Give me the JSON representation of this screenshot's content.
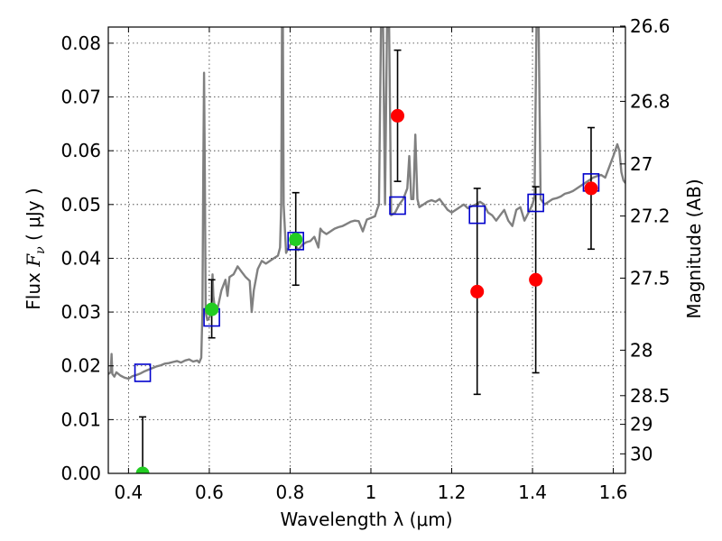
{
  "chart_data": {
    "type": "scatter",
    "title": "",
    "xlabel": "Wavelength  λ (μm)",
    "ylabel_parts": {
      "pre": "Flux  ",
      "sym": "F",
      "sub": "ν",
      "post": "  ( μJy )"
    },
    "ylabel_right": "Magnitude (AB)",
    "xlim": [
      0.35,
      1.63
    ],
    "ylim": [
      0.0,
      0.083
    ],
    "grid": true,
    "x_ticks": [
      0.4,
      0.6,
      0.8,
      1.0,
      1.2,
      1.4,
      1.6
    ],
    "x_tick_labels": [
      "0.4",
      "0.6",
      "0.8",
      "1",
      "1.2",
      "1.4",
      "1.6"
    ],
    "y_ticks": [
      0.0,
      0.01,
      0.02,
      0.03,
      0.04,
      0.05,
      0.06,
      0.07,
      0.08
    ],
    "y_tick_labels": [
      "0.00",
      "0.01",
      "0.02",
      "0.03",
      "0.04",
      "0.05",
      "0.06",
      "0.07",
      "0.08"
    ],
    "mag_ticks": [
      {
        "mag": 26.6,
        "label": "26.6"
      },
      {
        "mag": 26.8,
        "label": "26.8"
      },
      {
        "mag": 27.0,
        "label": "27"
      },
      {
        "mag": 27.2,
        "label": "27.2"
      },
      {
        "mag": 27.5,
        "label": "27.5"
      },
      {
        "mag": 28.0,
        "label": "28"
      },
      {
        "mag": 28.5,
        "label": "28.5"
      },
      {
        "mag": 29.0,
        "label": "29"
      },
      {
        "mag": 30.0,
        "label": "30"
      }
    ],
    "series": [
      {
        "kind": "template_spectrum",
        "color": "#808080",
        "points": [
          [
            0.35,
            0.0185
          ],
          [
            0.356,
            0.0188
          ],
          [
            0.358,
            0.0222
          ],
          [
            0.36,
            0.0185
          ],
          [
            0.365,
            0.018
          ],
          [
            0.37,
            0.0188
          ],
          [
            0.38,
            0.0182
          ],
          [
            0.39,
            0.0178
          ],
          [
            0.4,
            0.0176
          ],
          [
            0.41,
            0.0181
          ],
          [
            0.42,
            0.0183
          ],
          [
            0.43,
            0.0186
          ],
          [
            0.44,
            0.019
          ],
          [
            0.45,
            0.0193
          ],
          [
            0.46,
            0.0196
          ],
          [
            0.47,
            0.0199
          ],
          [
            0.48,
            0.0201
          ],
          [
            0.49,
            0.0204
          ],
          [
            0.5,
            0.0205
          ],
          [
            0.51,
            0.0207
          ],
          [
            0.52,
            0.0209
          ],
          [
            0.53,
            0.0206
          ],
          [
            0.54,
            0.021
          ],
          [
            0.55,
            0.0212
          ],
          [
            0.56,
            0.0208
          ],
          [
            0.57,
            0.021
          ],
          [
            0.575,
            0.0206
          ],
          [
            0.58,
            0.0215
          ],
          [
            0.583,
            0.03
          ],
          [
            0.585,
            0.055
          ],
          [
            0.587,
            0.0745
          ],
          [
            0.589,
            0.055
          ],
          [
            0.591,
            0.03
          ],
          [
            0.595,
            0.0285
          ],
          [
            0.6,
            0.029
          ],
          [
            0.605,
            0.03
          ],
          [
            0.608,
            0.037
          ],
          [
            0.61,
            0.033
          ],
          [
            0.615,
            0.03
          ],
          [
            0.62,
            0.0305
          ],
          [
            0.63,
            0.034
          ],
          [
            0.64,
            0.036
          ],
          [
            0.645,
            0.033
          ],
          [
            0.65,
            0.0365
          ],
          [
            0.66,
            0.037
          ],
          [
            0.67,
            0.0385
          ],
          [
            0.68,
            0.0375
          ],
          [
            0.69,
            0.0365
          ],
          [
            0.7,
            0.0358
          ],
          [
            0.705,
            0.03
          ],
          [
            0.71,
            0.034
          ],
          [
            0.72,
            0.038
          ],
          [
            0.73,
            0.0395
          ],
          [
            0.74,
            0.039
          ],
          [
            0.75,
            0.0395
          ],
          [
            0.76,
            0.04
          ],
          [
            0.77,
            0.0405
          ],
          [
            0.775,
            0.042
          ],
          [
            0.778,
            0.05
          ],
          [
            0.78,
            0.084
          ],
          [
            0.782,
            0.084
          ],
          [
            0.784,
            0.05
          ],
          [
            0.79,
            0.041
          ],
          [
            0.8,
            0.0425
          ],
          [
            0.81,
            0.043
          ],
          [
            0.82,
            0.0415
          ],
          [
            0.83,
            0.0425
          ],
          [
            0.84,
            0.043
          ],
          [
            0.85,
            0.0432
          ],
          [
            0.86,
            0.044
          ],
          [
            0.87,
            0.042
          ],
          [
            0.875,
            0.0455
          ],
          [
            0.88,
            0.045
          ],
          [
            0.89,
            0.0445
          ],
          [
            0.9,
            0.045
          ],
          [
            0.91,
            0.0455
          ],
          [
            0.92,
            0.0458
          ],
          [
            0.93,
            0.046
          ],
          [
            0.94,
            0.0464
          ],
          [
            0.95,
            0.0468
          ],
          [
            0.96,
            0.047
          ],
          [
            0.97,
            0.0469
          ],
          [
            0.98,
            0.045
          ],
          [
            0.99,
            0.0472
          ],
          [
            1.0,
            0.0475
          ],
          [
            1.01,
            0.0478
          ],
          [
            1.015,
            0.049
          ],
          [
            1.02,
            0.05
          ],
          [
            1.025,
            0.084
          ],
          [
            1.03,
            0.084
          ],
          [
            1.035,
            0.05
          ],
          [
            1.04,
            0.084
          ],
          [
            1.045,
            0.084
          ],
          [
            1.05,
            0.048
          ],
          [
            1.06,
            0.0485
          ],
          [
            1.07,
            0.05
          ],
          [
            1.08,
            0.051
          ],
          [
            1.09,
            0.053
          ],
          [
            1.095,
            0.059
          ],
          [
            1.1,
            0.051
          ],
          [
            1.105,
            0.051
          ],
          [
            1.11,
            0.063
          ],
          [
            1.115,
            0.051
          ],
          [
            1.12,
            0.0495
          ],
          [
            1.13,
            0.05
          ],
          [
            1.14,
            0.0505
          ],
          [
            1.15,
            0.0508
          ],
          [
            1.16,
            0.0505
          ],
          [
            1.17,
            0.051
          ],
          [
            1.18,
            0.05
          ],
          [
            1.19,
            0.049
          ],
          [
            1.2,
            0.0485
          ],
          [
            1.21,
            0.049
          ],
          [
            1.22,
            0.0495
          ],
          [
            1.23,
            0.05
          ],
          [
            1.24,
            0.0493
          ],
          [
            1.25,
            0.0497
          ],
          [
            1.26,
            0.05
          ],
          [
            1.27,
            0.0505
          ],
          [
            1.28,
            0.05
          ],
          [
            1.29,
            0.0485
          ],
          [
            1.3,
            0.048
          ],
          [
            1.31,
            0.047
          ],
          [
            1.32,
            0.048
          ],
          [
            1.33,
            0.049
          ],
          [
            1.34,
            0.047
          ],
          [
            1.35,
            0.046
          ],
          [
            1.36,
            0.049
          ],
          [
            1.37,
            0.0495
          ],
          [
            1.38,
            0.047
          ],
          [
            1.39,
            0.0485
          ],
          [
            1.4,
            0.05
          ],
          [
            1.405,
            0.0515
          ],
          [
            1.41,
            0.084
          ],
          [
            1.415,
            0.084
          ],
          [
            1.42,
            0.051
          ],
          [
            1.43,
            0.05
          ],
          [
            1.44,
            0.0505
          ],
          [
            1.45,
            0.051
          ],
          [
            1.46,
            0.0512
          ],
          [
            1.47,
            0.0515
          ],
          [
            1.48,
            0.052
          ],
          [
            1.49,
            0.0522
          ],
          [
            1.5,
            0.0525
          ],
          [
            1.51,
            0.053
          ],
          [
            1.52,
            0.0535
          ],
          [
            1.53,
            0.054
          ],
          [
            1.54,
            0.0545
          ],
          [
            1.55,
            0.055
          ],
          [
            1.56,
            0.0553
          ],
          [
            1.57,
            0.0555
          ],
          [
            1.58,
            0.055
          ],
          [
            1.59,
            0.057
          ],
          [
            1.6,
            0.059
          ],
          [
            1.61,
            0.0612
          ],
          [
            1.615,
            0.06
          ],
          [
            1.62,
            0.056
          ],
          [
            1.625,
            0.0545
          ],
          [
            1.63,
            0.054
          ]
        ]
      },
      {
        "kind": "model_photometry",
        "marker": "open-square",
        "color": "#0000cc",
        "points": [
          {
            "x": 0.435,
            "y": 0.0187
          },
          {
            "x": 0.606,
            "y": 0.029
          },
          {
            "x": 0.814,
            "y": 0.0432
          },
          {
            "x": 1.066,
            "y": 0.0498
          },
          {
            "x": 1.263,
            "y": 0.0481
          },
          {
            "x": 1.408,
            "y": 0.0503
          },
          {
            "x": 1.545,
            "y": 0.0541
          }
        ]
      },
      {
        "kind": "observed_detection",
        "marker": "filled-circle",
        "color": "#22cc22",
        "points": [
          {
            "x": 0.435,
            "y": 0.0,
            "yerr_low": 0.0,
            "yerr_high": 0.0105
          },
          {
            "x": 0.606,
            "y": 0.0305,
            "yerr_low": 0.0252,
            "yerr_high": 0.036
          },
          {
            "x": 0.814,
            "y": 0.0435,
            "yerr_low": 0.035,
            "yerr_high": 0.0522
          }
        ]
      },
      {
        "kind": "observed_other",
        "marker": "filled-circle",
        "color": "#ff0000",
        "points": [
          {
            "x": 1.066,
            "y": 0.0665,
            "yerr_low": 0.0543,
            "yerr_high": 0.0787
          },
          {
            "x": 1.263,
            "y": 0.0338,
            "yerr_low": 0.0147,
            "yerr_high": 0.053
          },
          {
            "x": 1.408,
            "y": 0.036,
            "yerr_low": 0.0187,
            "yerr_high": 0.0533
          },
          {
            "x": 1.545,
            "y": 0.053,
            "yerr_low": 0.0417,
            "yerr_high": 0.0643
          }
        ]
      }
    ]
  }
}
